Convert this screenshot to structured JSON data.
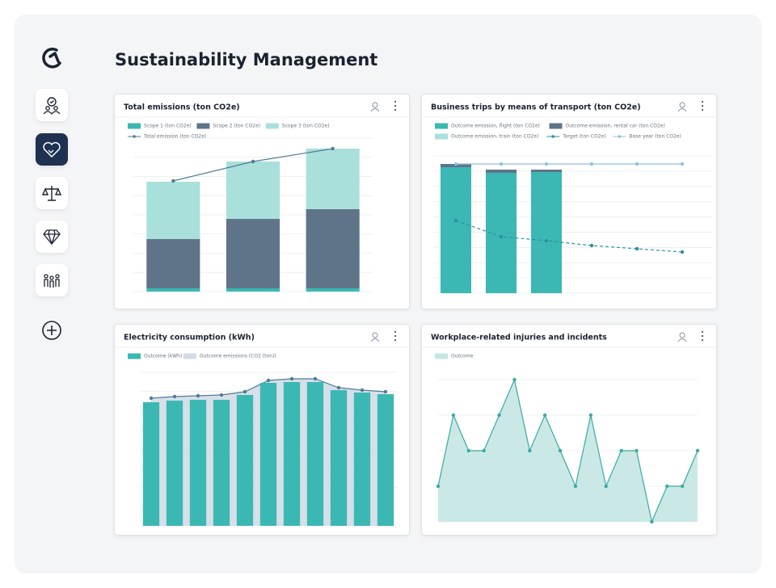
{
  "header": {
    "title": "Sustainability Management"
  },
  "chart_data": [
    {
      "type": "bar",
      "stacked": true,
      "title": "Total emissions (ton CO2e)",
      "grid": true,
      "categories": [
        null,
        null,
        null
      ],
      "ylim": [
        0,
        190
      ],
      "series": [
        {
          "name": "Scope 1 (ton CO2e)",
          "color": "#3bb8b3",
          "values": [
            4,
            4,
            4
          ]
        },
        {
          "name": "Scope 2 (ton CO2e)",
          "color": "#5f7489",
          "values": [
            61,
            86,
            98
          ]
        },
        {
          "name": "Scope 3 (ton CO2e)",
          "color": "#a9e0dc",
          "values": [
            71,
            71,
            75
          ]
        },
        {
          "name": "Total emission (ton CO2e)",
          "type": "line",
          "color": "#4f7b96",
          "markers": true,
          "values": [
            137,
            161,
            177
          ]
        }
      ]
    },
    {
      "type": "bar",
      "stacked": true,
      "title": "Business trips by means of transport (ton CO2e)",
      "grid": true,
      "categories": [
        null,
        null,
        null,
        null,
        null,
        null
      ],
      "ylim": [
        0,
        170
      ],
      "series": [
        {
          "name": "Outcome emission, flight (ton CO2e)",
          "color": "#3bb8b3",
          "values": [
            156,
            149,
            150,
            null,
            null,
            null
          ]
        },
        {
          "name": "Outcome emission, rental car (ton CO2e)",
          "color": "#5f7489",
          "values": [
            4,
            4,
            3,
            null,
            null,
            null
          ]
        },
        {
          "name": "Outcome emission, train (ton CO2e)",
          "color": "#a9e0dc",
          "values": [
            null,
            null,
            null,
            null,
            null,
            null
          ]
        },
        {
          "name": "Target (ton CO2e)",
          "type": "line",
          "dashed": true,
          "color": "#2e8fa3",
          "markers": true,
          "values": [
            90,
            70,
            65,
            59,
            55,
            51
          ]
        },
        {
          "name": "Base year (ton CO2e)",
          "type": "line",
          "color": "#8fbfe0",
          "markers": true,
          "values": [
            160,
            160,
            160,
            160,
            160,
            160
          ]
        }
      ]
    },
    {
      "type": "bar",
      "title": "Electricity consumption (kWh)",
      "grid": true,
      "categories": [
        null,
        null,
        null,
        null,
        null,
        null,
        null,
        null,
        null,
        null,
        null
      ],
      "ylim": [
        0,
        190
      ],
      "series": [
        {
          "name": "Outcome (kWh)",
          "color": "#3bb8b3",
          "values": [
            153,
            155,
            156,
            156,
            162,
            177,
            178,
            178,
            168,
            165,
            163
          ]
        },
        {
          "name": "Outcome emissions (CO2 (ton))",
          "type": "area",
          "color": "#d3dbe5",
          "line_color": "#4f7b96",
          "markers": true,
          "values": [
            158,
            160,
            161,
            162,
            166,
            180,
            182,
            182,
            171,
            168,
            166
          ]
        }
      ]
    },
    {
      "type": "area",
      "title": "Workplace-related injuries and incidents",
      "grid": true,
      "categories": [
        null,
        null,
        null,
        null,
        null,
        null,
        null,
        null,
        null,
        null,
        null,
        null,
        null,
        null,
        null,
        null,
        null,
        null
      ],
      "ylim": [
        0,
        4
      ],
      "series": [
        {
          "name": "Outcome",
          "color": "#c4e7e3",
          "line_color": "#3aa9a3",
          "markers": true,
          "values": [
            1,
            3,
            2,
            2,
            3,
            4,
            2,
            3,
            2,
            1,
            3,
            1,
            2,
            2,
            0,
            1,
            1,
            2
          ]
        }
      ]
    }
  ]
}
